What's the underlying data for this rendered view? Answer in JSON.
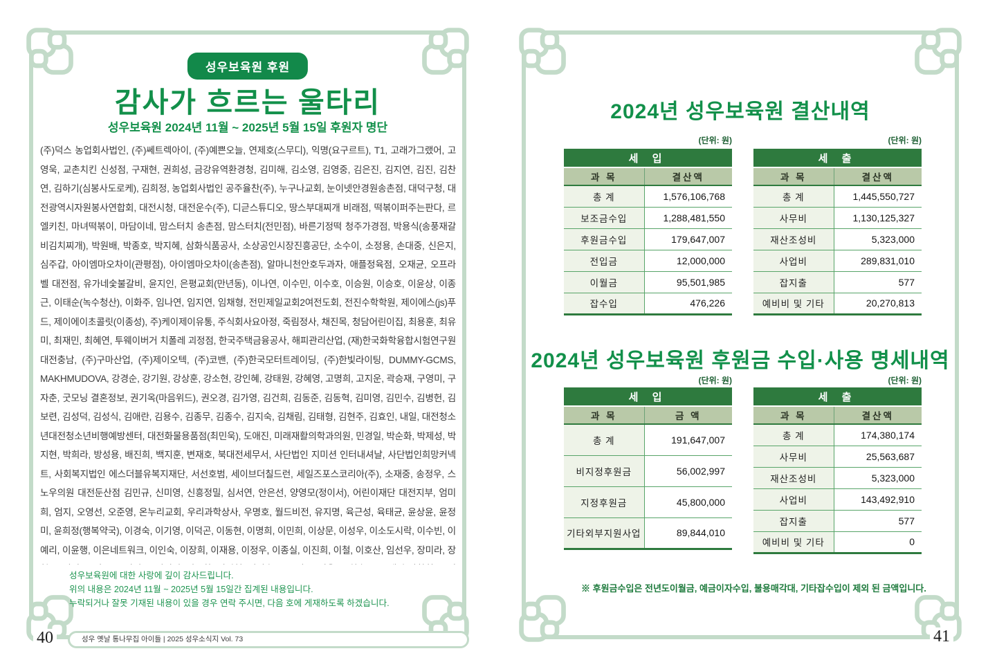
{
  "colors": {
    "brand_green": "#12904a",
    "frame_green": "#c3dbc9",
    "table_header_green": "#2e7a3e",
    "table_subheader_sage": "#b9c9a8",
    "table_label_bg": "#eef3e8",
    "note_green": "#1f9551"
  },
  "left_page": {
    "badge": "성우보육원 후원",
    "title": "감사가 흐르는 울타리",
    "subtitle": "성우보육원 2024년 11월 ~ 2025년 5월 15일 후원자 명단",
    "donors_text": "(주)덕스 농업회사법인, (주)쎄트렉아이, (주)예쁜오늘, 연제호(스무디), 익명(요구르트), T1, 고래가그랬어, 고영욱, 교촌치킨 신성점, 구재현, 권희성, 금강유역환경청, 김미해, 김소영, 김영중, 김은진, 김지연, 김진, 김찬연, 김하기(심봉사도로케), 김희정, 농업회사법인 공주율찬(주), 누구나교회, 눈이넷안경원송촌점, 대덕구청, 대전광역시자원봉사연합회, 대전시청, 대전운수(주), 디귿스튜디오, 땅스부대찌개 비래점, 떡볶이퍼주는판다, 르엘키친, 마녀떡볶이, 마담이네, 맘스터치 송촌점, 맘스터치(전민점), 바른기정떡 청주가경점, 박용식(송풍재갈비김치찌개), 박원배, 박종호, 박지혜, 삼화식품공사, 소상공인시장진흥공단, 소수이, 소정용, 손대중, 신은지, 심주갑, 아이엠마오차이(관평점), 아이엠마오차이(송촌점), 알마니천안호두과자, 애플정육점, 오재균, 오프라벨 대전점, 유가네숯불갈비, 윤지인, 은평교회(만년동), 이나연, 이수민, 이수호, 이승원, 이승호, 이윤상, 이종근, 이태순(녹수청산), 이화주, 임나연, 임지연, 임채형, 전민제일교회2여전도회, 전진수학학원, 제이에스(js)푸드, 제이에이초콜릿(이종성), 주)케이제이유통, 주식회사요아정, 죽림정사, 채진목, 청담어린이집, 최용훈, 최유미, 최재민, 최혜연, 투웨이버거 치폴레 괴정점, 한국주택금융공사, 해피관리산업, (재)한국화학융합시험연구원 대전충남, (주)구마산업, (주)제이오텍, (주)코밴, (주)한국모터트레이딩, (주)한빛라이팅, DUMMY-GCMS, MAKHMUDOVA, 강경순, 강기원, 강상훈, 강소현, 강인혜, 강태원, 강혜영, 고명희, 고지운, 곽승재, 구영미, 구자춘, 굿모닝 결혼정보, 권기옥(마음위드), 권오경, 김가영, 김건희, 김동준, 김동혁, 김미영, 김민수, 김병헌, 김보련, 김성덕, 김성식, 김애란, 김용수, 김종무, 김종수, 김지숙, 김채림, 김태형, 김현주, 김효인, 내일, 대전청소년대전청소년비행예방센터, 대전화물용품점(최민욱), 도애진, 미래재활의학과의원, 민경일, 박순화, 박제성, 박지현, 박희라, 방성용, 배진희, 백지훈, 변재호, 북대전세무서, 사단법인 지미션 인터내셔날, 사단법인희망커넥트, 사회복지법인 에스더블유복지재단, 서선호범, 세이브더칠드런, 세일즈포스코리아(주), 소재중, 송정우, 스노우의원 대전둔산점 김민규, 신미영, 신흥정밀, 심서연, 안은선, 양영모(정이서), 어린이재단 대전지부, 엄미희, 엄지, 오영선, 오준영, 온누리교회, 우리과학상사, 우명호, 월드비전, 유지명, 육근성, 육태균, 윤상윤, 윤정미, 윤희정(행복약국), 이경숙, 이기영, 이덕곤, 이동현, 이명희, 이민희, 이상문, 이성우, 이소도시락, 이수빈, 이예리, 이윤행, 이은네트워크, 이인숙, 이장희, 이재용, 이정우, 이종실, 이진희, 이철, 이호산, 임선우, 장미라, 장형옥, 전성윤, 전우종, 전진구, 정미선, 정종화, 정지현, 정진숙, 조규원, 조영욱, 조희송, 좋은생각 장학회, 주식회사 가온헬스케어, 주진세, 지상욱, 채성우, 천연소방, 천지건설산업주식회사, 최민경, 최병관, 최상설, 최정선, 최지원, 카이스트새마을봉사동아리, 코리아FA, 티스테이션오색읍내점, 표치수, 하태호, 한국가스기술공사 대전충청지사 그린누리봉사단, 한국수력원자력(주), 해양수산부, 행동하는양심, 형제크레인, 호윤우, 황성호, 황수만",
    "notes": {
      "line1": "성우보육원에 대한 사랑에 깊이 감사드립니다.",
      "line2": "위의 내용은 2024년 11월 ~ 2025년 5월 15일간 집계된 내용입니다.",
      "line3": "누락되거나 잘못 기재된 내용이 있을 경우 연락 주시면, 다음 호에 게재하도록 하겠습니다."
    },
    "page_number": "40",
    "footer_text": "성우 옛날 통나무집 아이들 | 2025 성우소식지 Vol. 73"
  },
  "right_page": {
    "sections": [
      {
        "title": "2024년 성우보육원 결산내역",
        "unit_label": "(단위: 원)",
        "tables": [
          {
            "header": "세 입",
            "col_label": "과 목",
            "col_value": "결산액",
            "rows": [
              [
                "총 계",
                "1,576,106,768"
              ],
              [
                "보조금수입",
                "1,288,481,550"
              ],
              [
                "후원금수입",
                "179,647,007"
              ],
              [
                "전입금",
                "12,000,000"
              ],
              [
                "이월금",
                "95,501,985"
              ],
              [
                "잡수입",
                "476,226"
              ]
            ]
          },
          {
            "header": "세 출",
            "col_label": "과 목",
            "col_value": "결산액",
            "rows": [
              [
                "총 계",
                "1,445,550,727"
              ],
              [
                "사무비",
                "1,130,125,327"
              ],
              [
                "재산조성비",
                "5,323,000"
              ],
              [
                "사업비",
                "289,831,010"
              ],
              [
                "잡지출",
                "577"
              ],
              [
                "예비비 및 기타",
                "20,270,813"
              ]
            ]
          }
        ]
      },
      {
        "title": "2024년 성우보육원 후원금 수입·사용 명세내역",
        "unit_label": "(단위: 원)",
        "tables": [
          {
            "header": "세 입",
            "col_label": "과 목",
            "col_value": "금 액",
            "rows": [
              [
                "총 계",
                "191,647,007"
              ],
              [
                "비지정후원금",
                "56,002,997"
              ],
              [
                "지정후원금",
                "45,800,000"
              ],
              [
                "기타외부지원사업",
                "89,844,010"
              ]
            ]
          },
          {
            "header": "세 출",
            "col_label": "과 목",
            "col_value": "결산액",
            "rows": [
              [
                "총 계",
                "174,380,174"
              ],
              [
                "사무비",
                "25,563,687"
              ],
              [
                "재산조성비",
                "5,323,000"
              ],
              [
                "사업비",
                "143,492,910"
              ],
              [
                "잡지출",
                "577"
              ],
              [
                "예비비 및 기타",
                "0"
              ]
            ]
          }
        ]
      }
    ],
    "footnote": "※ 후원금수입은 전년도이월금, 예금이자수입, 불용매각대, 기타잡수입이 제외 된 금액입니다.",
    "page_number": "41"
  }
}
